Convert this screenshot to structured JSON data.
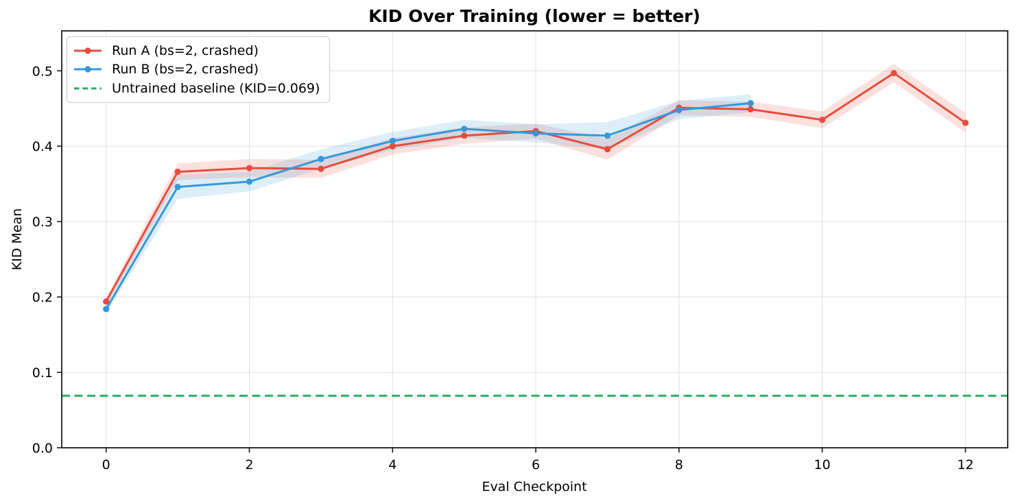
{
  "title": "KID Over Training (lower = better)",
  "chart_data": {
    "type": "line",
    "title": "KID Over Training (lower = better)",
    "xlabel": "Eval Checkpoint",
    "ylabel": "KID Mean",
    "xlim": [
      -0.62,
      12.59
    ],
    "ylim": [
      0,
      0.553
    ],
    "xticks": [
      0,
      2,
      4,
      6,
      8,
      10,
      12
    ],
    "yticks": [
      0.0,
      0.1,
      0.2,
      0.3,
      0.4,
      0.5
    ],
    "ytick_labels": [
      "0.0",
      "0.1",
      "0.2",
      "0.3",
      "0.4",
      "0.5"
    ],
    "grid": true,
    "legend_position": "upper-left",
    "series": [
      {
        "id": "run-a",
        "name": "Run A (bs=2, crashed)",
        "color": "#e74c3c",
        "x": [
          0,
          1,
          2,
          3,
          4,
          5,
          6,
          7,
          8,
          9,
          10,
          11,
          12
        ],
        "y": [
          0.194,
          0.366,
          0.371,
          0.37,
          0.4,
          0.414,
          0.42,
          0.396,
          0.451,
          0.449,
          0.435,
          0.497,
          0.431
        ],
        "band": [
          0.006,
          0.011,
          0.012,
          0.012,
          0.011,
          0.011,
          0.01,
          0.014,
          0.01,
          0.01,
          0.011,
          0.012,
          0.013
        ]
      },
      {
        "id": "run-b",
        "name": "Run B (bs=2, crashed)",
        "color": "#3498db",
        "x": [
          0,
          1,
          2,
          3,
          4,
          5,
          6,
          7,
          8,
          9
        ],
        "y": [
          0.184,
          0.346,
          0.353,
          0.383,
          0.407,
          0.423,
          0.417,
          0.414,
          0.448,
          0.457
        ],
        "band": [
          0.006,
          0.016,
          0.013,
          0.013,
          0.012,
          0.012,
          0.012,
          0.018,
          0.012,
          0.012
        ]
      }
    ],
    "baseline": {
      "label": "Untrained baseline (KID=0.069)",
      "value": 0.069,
      "color": "#27ae60",
      "style": "dashed"
    }
  },
  "legend": {
    "items": [
      {
        "label": "Run A (bs=2, crashed)",
        "color": "#e74c3c",
        "style": "line-marker"
      },
      {
        "label": "Run B (bs=2, crashed)",
        "color": "#3498db",
        "style": "line-marker"
      },
      {
        "label": "Untrained baseline (KID=0.069)",
        "color": "#27ae60",
        "style": "dashed"
      }
    ]
  },
  "style": {
    "grid_color": "#cfcfcf",
    "spine_color": "#1a1a1a",
    "band_opacity": 0.17
  }
}
